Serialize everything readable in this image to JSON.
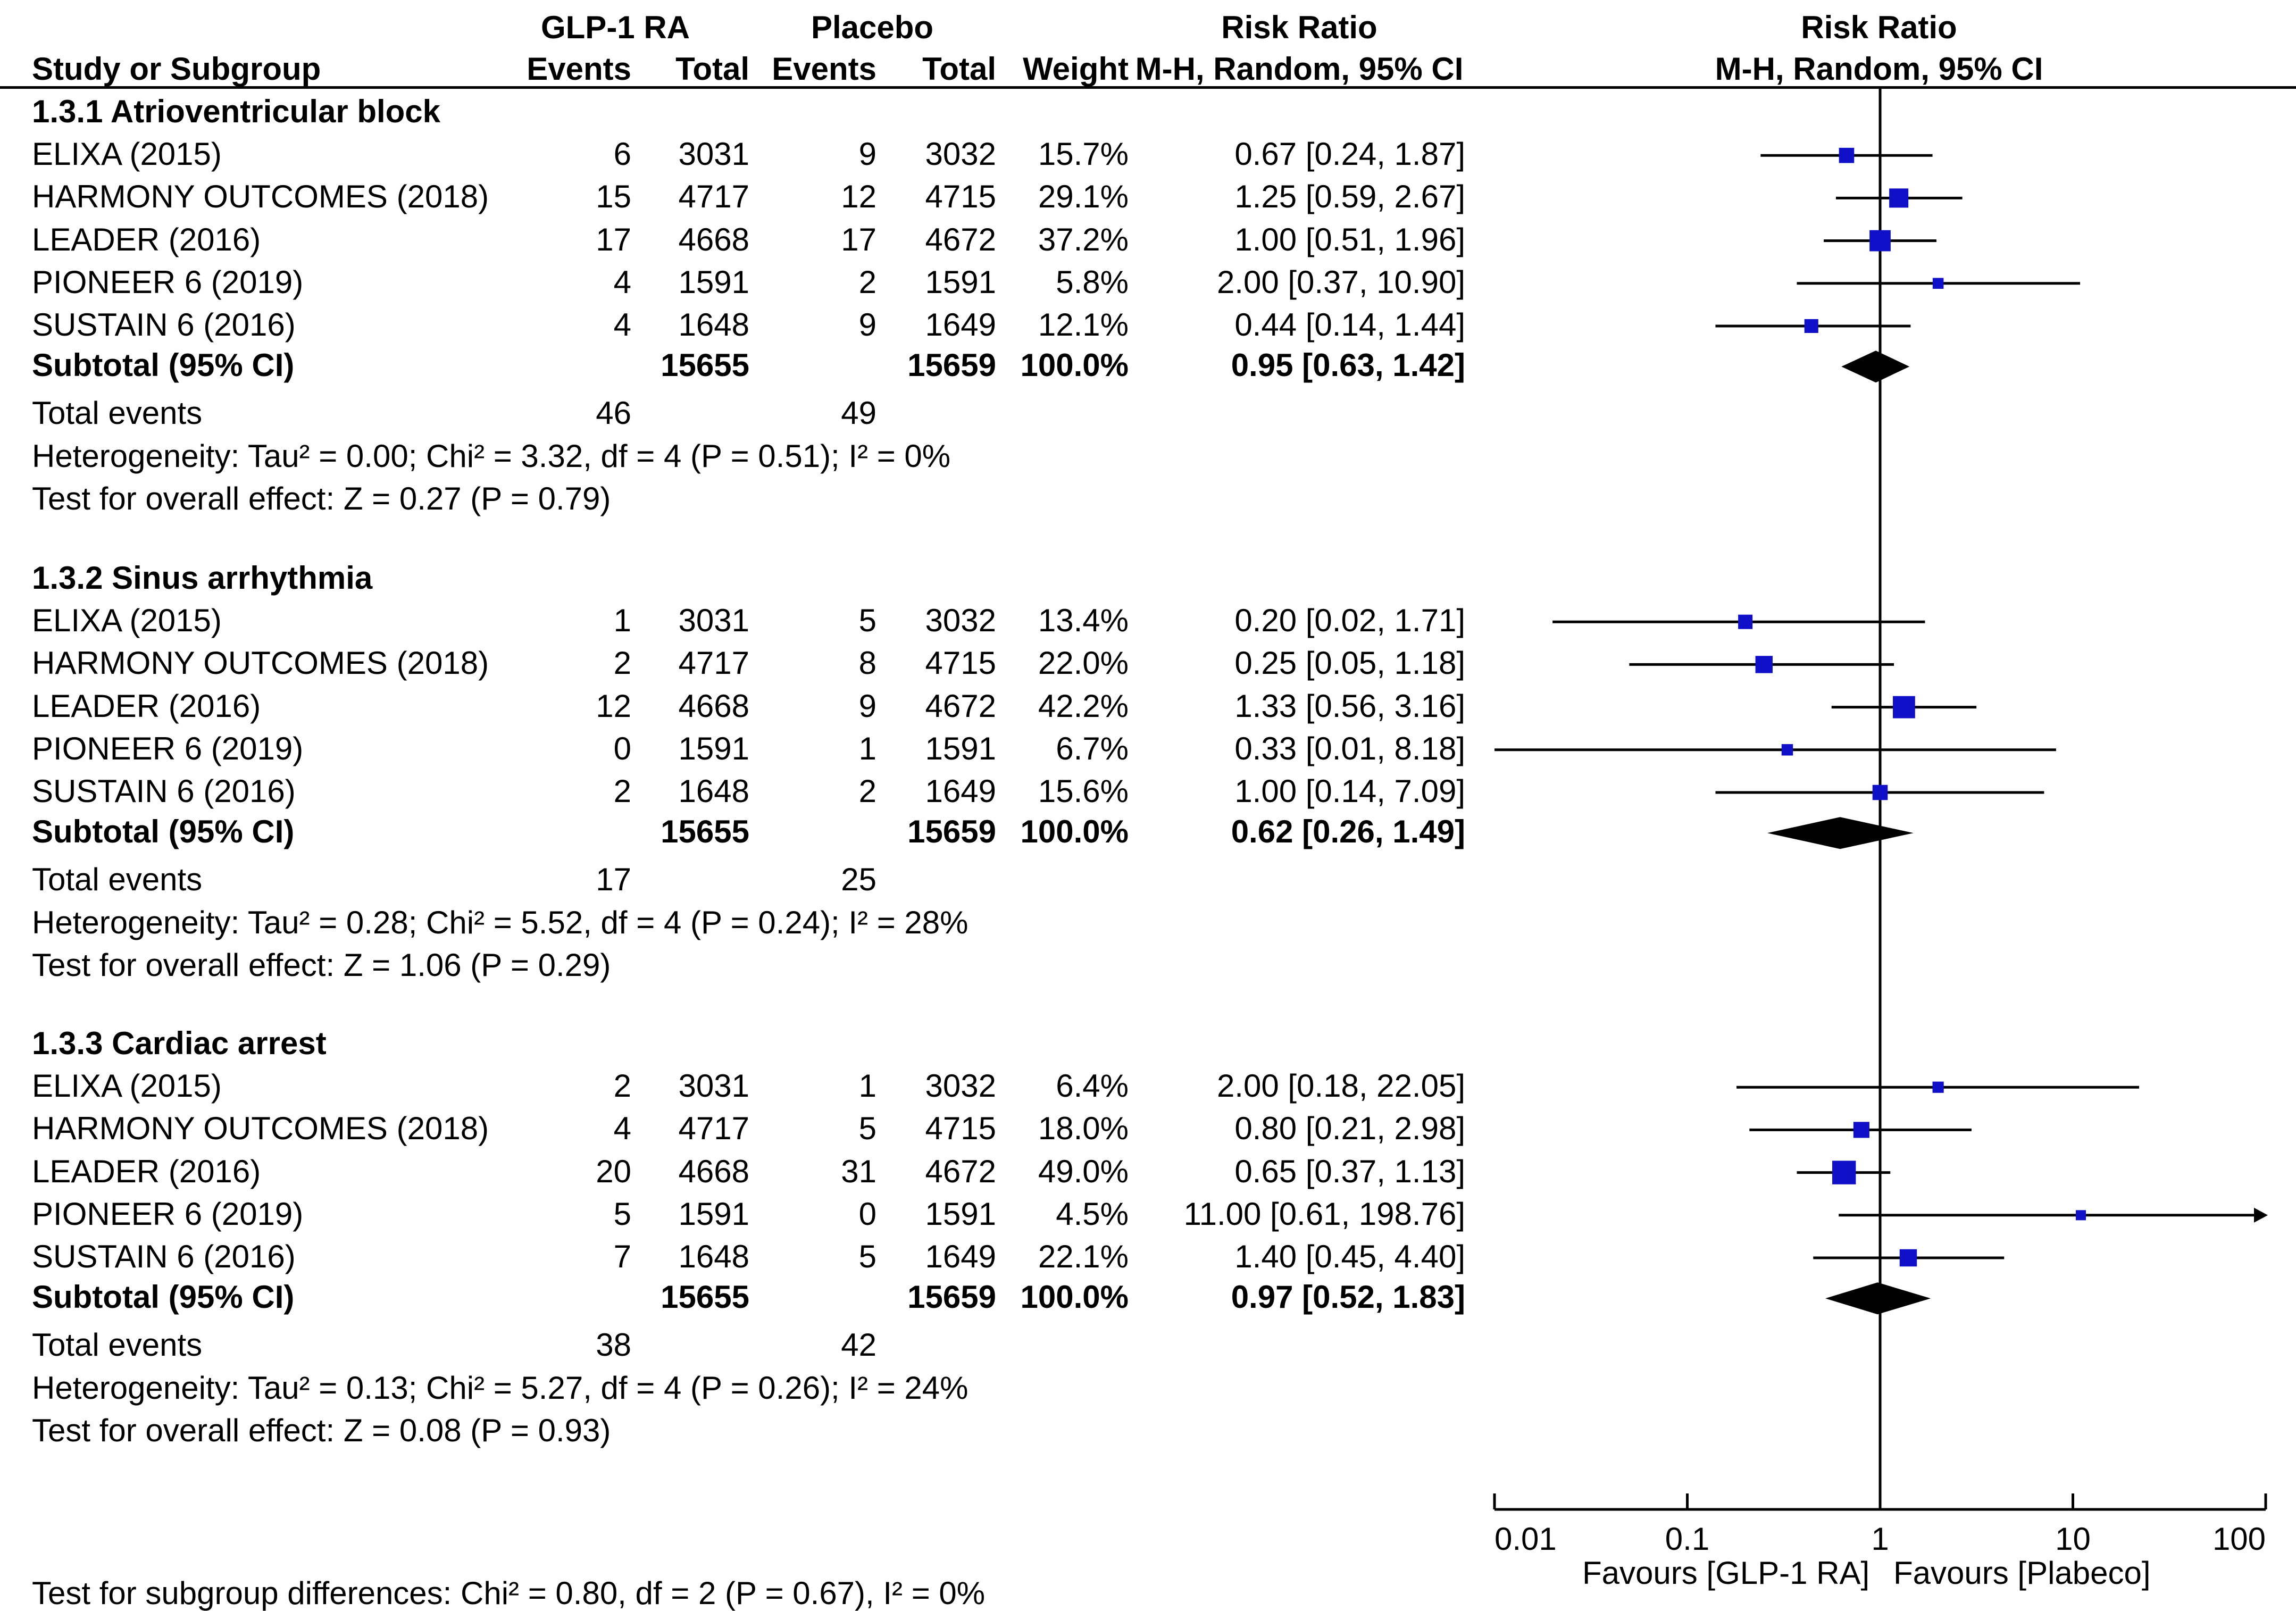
{
  "header": {
    "group1": "GLP-1 RA",
    "group2": "Placebo",
    "rr_col_title": "Risk Ratio",
    "rr_col_method": "M-H, Random, 95% CI",
    "study_col": "Study or Subgroup",
    "events": "Events",
    "total": "Total",
    "weight": "Weight",
    "plot_title": "Risk Ratio",
    "plot_method": "M-H, Random, 95% CI"
  },
  "subgroups": [
    {
      "title": "1.3.1 Atrioventricular block",
      "studies": [
        {
          "name": "ELIXA (2015)",
          "e1": "6",
          "n1": "3031",
          "e2": "9",
          "n2": "3032",
          "weight": "15.7%",
          "rr_text": "0.67 [0.24, 1.87]"
        },
        {
          "name": "HARMONY OUTCOMES (2018)",
          "e1": "15",
          "n1": "4717",
          "e2": "12",
          "n2": "4715",
          "weight": "29.1%",
          "rr_text": "1.25 [0.59, 2.67]"
        },
        {
          "name": "LEADER (2016)",
          "e1": "17",
          "n1": "4668",
          "e2": "17",
          "n2": "4672",
          "weight": "37.2%",
          "rr_text": "1.00 [0.51, 1.96]"
        },
        {
          "name": "PIONEER 6 (2019)",
          "e1": "4",
          "n1": "1591",
          "e2": "2",
          "n2": "1591",
          "weight": "5.8%",
          "rr_text": "2.00 [0.37, 10.90]"
        },
        {
          "name": "SUSTAIN 6 (2016)",
          "e1": "4",
          "n1": "1648",
          "e2": "9",
          "n2": "1649",
          "weight": "12.1%",
          "rr_text": "0.44 [0.14, 1.44]"
        }
      ],
      "subtotal": {
        "label": "Subtotal (95% CI)",
        "n1": "15655",
        "n2": "15659",
        "weight": "100.0%",
        "rr_text": "0.95 [0.63, 1.42]"
      },
      "total_events": {
        "label": "Total events",
        "e1": "46",
        "e2": "49"
      },
      "heterogeneity": "Heterogeneity: Tau² = 0.00; Chi² = 3.32, df = 4 (P = 0.51); I² = 0%",
      "overall": "Test for overall effect: Z = 0.27 (P = 0.79)"
    },
    {
      "title": "1.3.2 Sinus arrhythmia",
      "studies": [
        {
          "name": "ELIXA (2015)",
          "e1": "1",
          "n1": "3031",
          "e2": "5",
          "n2": "3032",
          "weight": "13.4%",
          "rr_text": "0.20 [0.02, 1.71]"
        },
        {
          "name": "HARMONY OUTCOMES (2018)",
          "e1": "2",
          "n1": "4717",
          "e2": "8",
          "n2": "4715",
          "weight": "22.0%",
          "rr_text": "0.25 [0.05, 1.18]"
        },
        {
          "name": "LEADER (2016)",
          "e1": "12",
          "n1": "4668",
          "e2": "9",
          "n2": "4672",
          "weight": "42.2%",
          "rr_text": "1.33 [0.56, 3.16]"
        },
        {
          "name": "PIONEER 6 (2019)",
          "e1": "0",
          "n1": "1591",
          "e2": "1",
          "n2": "1591",
          "weight": "6.7%",
          "rr_text": "0.33 [0.01, 8.18]"
        },
        {
          "name": "SUSTAIN 6 (2016)",
          "e1": "2",
          "n1": "1648",
          "e2": "2",
          "n2": "1649",
          "weight": "15.6%",
          "rr_text": "1.00 [0.14, 7.09]"
        }
      ],
      "subtotal": {
        "label": "Subtotal (95% CI)",
        "n1": "15655",
        "n2": "15659",
        "weight": "100.0%",
        "rr_text": "0.62 [0.26, 1.49]"
      },
      "total_events": {
        "label": "Total events",
        "e1": "17",
        "e2": "25"
      },
      "heterogeneity": "Heterogeneity: Tau² = 0.28; Chi² = 5.52, df = 4 (P = 0.24); I² = 28%",
      "overall": "Test for overall effect: Z = 1.06 (P = 0.29)"
    },
    {
      "title": "1.3.3 Cardiac arrest",
      "studies": [
        {
          "name": "ELIXA (2015)",
          "e1": "2",
          "n1": "3031",
          "e2": "1",
          "n2": "3032",
          "weight": "6.4%",
          "rr_text": "2.00 [0.18, 22.05]"
        },
        {
          "name": "HARMONY OUTCOMES (2018)",
          "e1": "4",
          "n1": "4717",
          "e2": "5",
          "n2": "4715",
          "weight": "18.0%",
          "rr_text": "0.80 [0.21, 2.98]"
        },
        {
          "name": "LEADER (2016)",
          "e1": "20",
          "n1": "4668",
          "e2": "31",
          "n2": "4672",
          "weight": "49.0%",
          "rr_text": "0.65 [0.37, 1.13]"
        },
        {
          "name": "PIONEER 6 (2019)",
          "e1": "5",
          "n1": "1591",
          "e2": "0",
          "n2": "1591",
          "weight": "4.5%",
          "rr_text": "11.00 [0.61, 198.76]"
        },
        {
          "name": "SUSTAIN 6 (2016)",
          "e1": "7",
          "n1": "1648",
          "e2": "5",
          "n2": "1649",
          "weight": "22.1%",
          "rr_text": "1.40 [0.45, 4.40]"
        }
      ],
      "subtotal": {
        "label": "Subtotal (95% CI)",
        "n1": "15655",
        "n2": "15659",
        "weight": "100.0%",
        "rr_text": "0.97 [0.52, 1.83]"
      },
      "total_events": {
        "label": "Total events",
        "e1": "38",
        "e2": "42"
      },
      "heterogeneity": "Heterogeneity: Tau² = 0.13; Chi² = 5.27, df = 4 (P = 0.26); I² = 24%",
      "overall": "Test for overall effect: Z = 0.08 (P = 0.93)"
    }
  ],
  "subgroup_test": "Test for subgroup differences: Chi² = 0.80, df = 2 (P = 0.67), I² = 0%",
  "favours_left": "Favours [GLP-1 RA]",
  "favours_right": "Favours [Plabeco]",
  "colors": {
    "square": "#1010c8",
    "diamond": "#000000",
    "line": "#000000"
  },
  "chart_data": {
    "type": "forest",
    "title": "Risk Ratio",
    "method": "M-H, Random, 95% CI",
    "scale": "log",
    "xlim": [
      0.01,
      100
    ],
    "xticks": [
      0.01,
      0.1,
      1,
      10,
      100
    ],
    "xtick_labels": [
      "0.01",
      "0.1",
      "1",
      "10",
      "100"
    ],
    "reference": 1,
    "xlabel_left": "Favours [GLP-1 RA]",
    "xlabel_right": "Favours [Plabeco]",
    "series": [
      {
        "name": "1.3.1 Atrioventricular block",
        "studies": [
          {
            "name": "ELIXA (2015)",
            "rr": 0.67,
            "lo": 0.24,
            "hi": 1.87,
            "weight": 15.7
          },
          {
            "name": "HARMONY OUTCOMES (2018)",
            "rr": 1.25,
            "lo": 0.59,
            "hi": 2.67,
            "weight": 29.1
          },
          {
            "name": "LEADER (2016)",
            "rr": 1.0,
            "lo": 0.51,
            "hi": 1.96,
            "weight": 37.2
          },
          {
            "name": "PIONEER 6 (2019)",
            "rr": 2.0,
            "lo": 0.37,
            "hi": 10.9,
            "weight": 5.8
          },
          {
            "name": "SUSTAIN 6 (2016)",
            "rr": 0.44,
            "lo": 0.14,
            "hi": 1.44,
            "weight": 12.1
          }
        ],
        "subtotal": {
          "rr": 0.95,
          "lo": 0.63,
          "hi": 1.42
        }
      },
      {
        "name": "1.3.2 Sinus arrhythmia",
        "studies": [
          {
            "name": "ELIXA (2015)",
            "rr": 0.2,
            "lo": 0.02,
            "hi": 1.71,
            "weight": 13.4
          },
          {
            "name": "HARMONY OUTCOMES (2018)",
            "rr": 0.25,
            "lo": 0.05,
            "hi": 1.18,
            "weight": 22.0
          },
          {
            "name": "LEADER (2016)",
            "rr": 1.33,
            "lo": 0.56,
            "hi": 3.16,
            "weight": 42.2
          },
          {
            "name": "PIONEER 6 (2019)",
            "rr": 0.33,
            "lo": 0.01,
            "hi": 8.18,
            "weight": 6.7
          },
          {
            "name": "SUSTAIN 6 (2016)",
            "rr": 1.0,
            "lo": 0.14,
            "hi": 7.09,
            "weight": 15.6
          }
        ],
        "subtotal": {
          "rr": 0.62,
          "lo": 0.26,
          "hi": 1.49
        }
      },
      {
        "name": "1.3.3 Cardiac arrest",
        "studies": [
          {
            "name": "ELIXA (2015)",
            "rr": 2.0,
            "lo": 0.18,
            "hi": 22.05,
            "weight": 6.4
          },
          {
            "name": "HARMONY OUTCOMES (2018)",
            "rr": 0.8,
            "lo": 0.21,
            "hi": 2.98,
            "weight": 18.0
          },
          {
            "name": "LEADER (2016)",
            "rr": 0.65,
            "lo": 0.37,
            "hi": 1.13,
            "weight": 49.0
          },
          {
            "name": "PIONEER 6 (2019)",
            "rr": 11.0,
            "lo": 0.61,
            "hi": 198.76,
            "weight": 4.5
          },
          {
            "name": "SUSTAIN 6 (2016)",
            "rr": 1.4,
            "lo": 0.45,
            "hi": 4.4,
            "weight": 22.1
          }
        ],
        "subtotal": {
          "rr": 0.97,
          "lo": 0.52,
          "hi": 1.83
        }
      }
    ]
  }
}
